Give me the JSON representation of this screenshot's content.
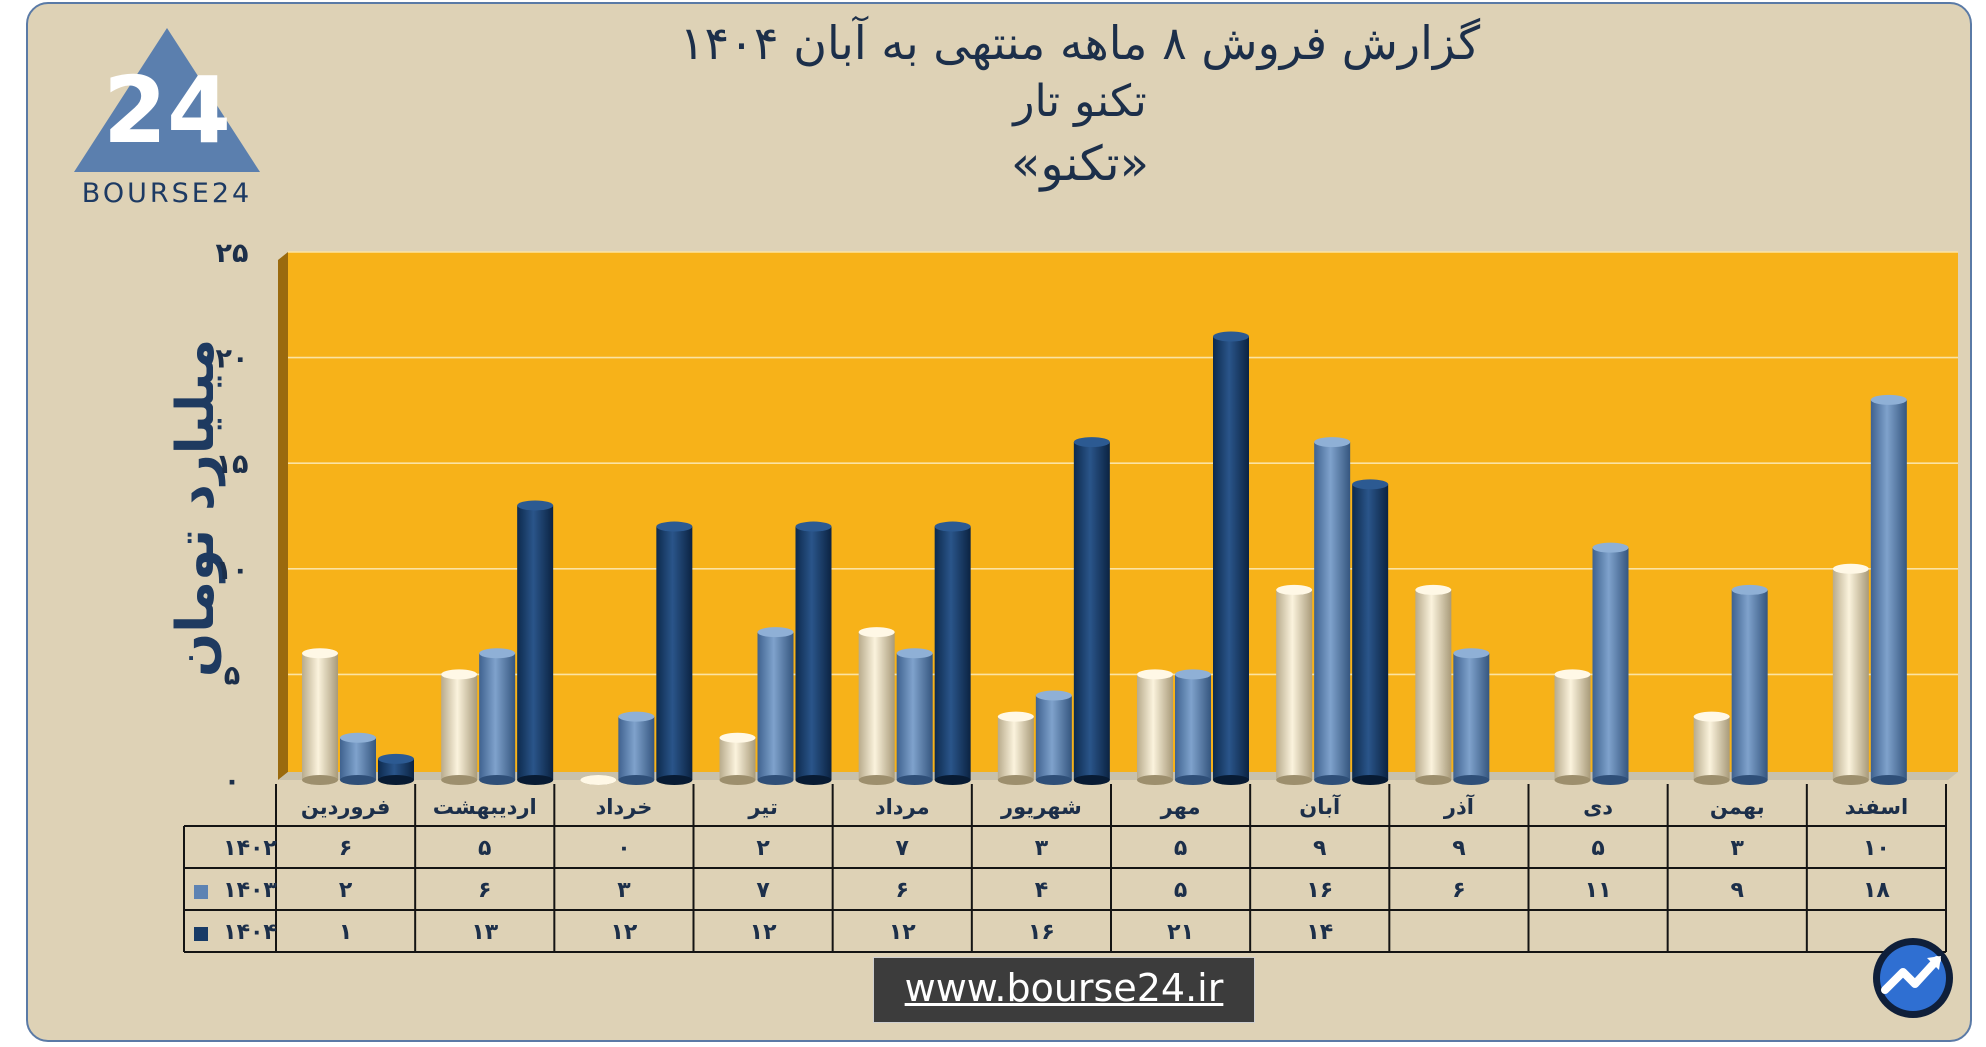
{
  "header": {
    "title_line1": "گزارش  فروش ۸ ماهه منتهی به آبان ۱۴۰۴",
    "title_line2": "تکنو تار",
    "title_line3": "«تکنو»"
  },
  "logo": {
    "text": "BOURSE24",
    "mark": "24"
  },
  "footer": {
    "url": "www.bourse24.ir"
  },
  "colors": {
    "series_1402": "#efe3c6",
    "series_1403": "#5d83b3",
    "series_1404": "#173a66",
    "plot_bg": "#f7b219",
    "frame_bg": "#ded2b6"
  },
  "chart_data": {
    "type": "bar",
    "ylabel": "میلیارد تومان",
    "ylim": [
      0,
      25
    ],
    "yticks": [
      0,
      5,
      10,
      15,
      20,
      25
    ],
    "ytick_labels": [
      "۰",
      "۵",
      "۱۰",
      "۱۵",
      "۲۰",
      "۲۵"
    ],
    "grid": true,
    "categories": [
      "فروردین",
      "اردیبهشت",
      "خرداد",
      "تیر",
      "مرداد",
      "شهریور",
      "مهر",
      "آبان",
      "آذر",
      "دی",
      "بهمن",
      "اسفند"
    ],
    "series": [
      {
        "name": "۱۴۰۲",
        "values": [
          6,
          5,
          0,
          2,
          7,
          3,
          5,
          9,
          9,
          5,
          3,
          10
        ],
        "labels": [
          "۶",
          "۵",
          "۰",
          "۲",
          "۷",
          "۳",
          "۵",
          "۹",
          "۹",
          "۵",
          "۳",
          "۱۰"
        ]
      },
      {
        "name": "۱۴۰۳",
        "values": [
          2,
          6,
          3,
          7,
          6,
          4,
          5,
          16,
          6,
          11,
          9,
          18
        ],
        "labels": [
          "۲",
          "۶",
          "۳",
          "۷",
          "۶",
          "۴",
          "۵",
          "۱۶",
          "۶",
          "۱۱",
          "۹",
          "۱۸"
        ]
      },
      {
        "name": "۱۴۰۴",
        "values": [
          1,
          13,
          12,
          12,
          12,
          16,
          21,
          14,
          null,
          null,
          null,
          null
        ],
        "labels": [
          "۱",
          "۱۳",
          "۱۲",
          "۱۲",
          "۱۲",
          "۱۶",
          "۲۱",
          "۱۴",
          "",
          "",
          "",
          ""
        ]
      }
    ]
  }
}
